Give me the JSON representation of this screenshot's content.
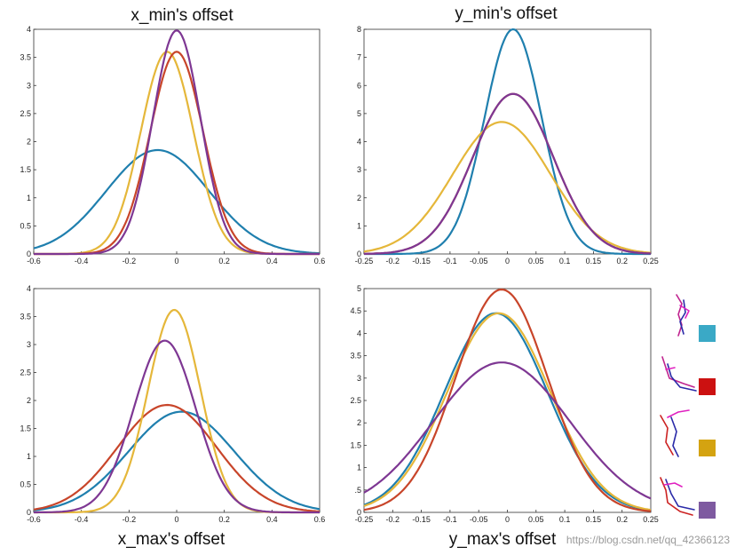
{
  "colors": {
    "blue": "#1f7fae",
    "red": "#c8452a",
    "yellow": "#e5b73a",
    "purple": "#7e3793"
  },
  "legend": {
    "swatches": [
      {
        "name": "blue",
        "color": "#3aa9c6"
      },
      {
        "name": "red",
        "color": "#cc1111"
      },
      {
        "name": "yellow",
        "color": "#d4a311"
      },
      {
        "name": "purple",
        "color": "#7e5aa0"
      }
    ]
  },
  "watermark": "https://blog.csdn.net/qq_42366123",
  "chart_data": [
    {
      "type": "line",
      "title": "x_min's  offset",
      "xlim": [
        -0.6,
        0.6
      ],
      "ylim": [
        0,
        4
      ],
      "xticks": [
        "-0.6",
        "-0.4",
        "-0.2",
        "0",
        "0.2",
        "0.4",
        "0.6"
      ],
      "yticks": [
        "0",
        "0.5",
        "1",
        "1.5",
        "2",
        "2.5",
        "3",
        "3.5",
        "4"
      ],
      "series": [
        {
          "name": "blue",
          "mu": -0.08,
          "peak": 1.85
        },
        {
          "name": "yellow",
          "mu": -0.04,
          "peak": 3.6
        },
        {
          "name": "red",
          "mu": 0.0,
          "peak": 3.6
        },
        {
          "name": "purple",
          "mu": 0.0,
          "peak": 3.98
        }
      ]
    },
    {
      "type": "line",
      "title": "y_min's  offset",
      "xlim": [
        -0.25,
        0.25
      ],
      "ylim": [
        0,
        8
      ],
      "xticks": [
        "-0.25",
        "-0.2",
        "-0.15",
        "-0.1",
        "-0.05",
        "0",
        "0.05",
        "0.1",
        "0.15",
        "0.2",
        "0.25"
      ],
      "yticks": [
        "0",
        "1",
        "2",
        "3",
        "4",
        "5",
        "6",
        "7",
        "8"
      ],
      "series": [
        {
          "name": "blue",
          "mu": 0.01,
          "peak": 8.0
        },
        {
          "name": "yellow",
          "mu": -0.01,
          "peak": 4.7
        },
        {
          "name": "red",
          "mu": 0.01,
          "peak": 5.7
        },
        {
          "name": "purple",
          "mu": 0.01,
          "peak": 5.7
        }
      ]
    },
    {
      "type": "line",
      "title": "x_max's  offset",
      "xlim": [
        -0.6,
        0.6
      ],
      "ylim": [
        0,
        4
      ],
      "xticks": [
        "-0.6",
        "-0.4",
        "-0.2",
        "0",
        "0.2",
        "0.4",
        "0.6"
      ],
      "yticks": [
        "0",
        "0.5",
        "1",
        "1.5",
        "2",
        "2.5",
        "3",
        "3.5",
        "4"
      ],
      "series": [
        {
          "name": "blue",
          "mu": 0.02,
          "peak": 1.8
        },
        {
          "name": "red",
          "mu": -0.04,
          "peak": 1.92
        },
        {
          "name": "yellow",
          "mu": -0.01,
          "peak": 3.62
        },
        {
          "name": "purple",
          "mu": -0.05,
          "peak": 3.07
        }
      ]
    },
    {
      "type": "line",
      "title": "y_max's  offset",
      "xlim": [
        -0.25,
        0.25
      ],
      "ylim": [
        0,
        5
      ],
      "xticks": [
        "-0.25",
        "-0.2",
        "-0.15",
        "-0.1",
        "-0.05",
        "0",
        "0.05",
        "0.1",
        "0.15",
        "0.2",
        "0.25"
      ],
      "yticks": [
        "0",
        ".5",
        "1",
        "1.5",
        "2",
        "2.5",
        "3",
        "3.5",
        "4",
        "4.5",
        "5"
      ],
      "series": [
        {
          "name": "blue",
          "mu": -0.02,
          "peak": 4.45
        },
        {
          "name": "yellow",
          "mu": -0.015,
          "peak": 4.45
        },
        {
          "name": "red",
          "mu": -0.01,
          "peak": 4.98
        },
        {
          "name": "purple",
          "mu": -0.01,
          "peak": 3.35
        }
      ]
    }
  ]
}
